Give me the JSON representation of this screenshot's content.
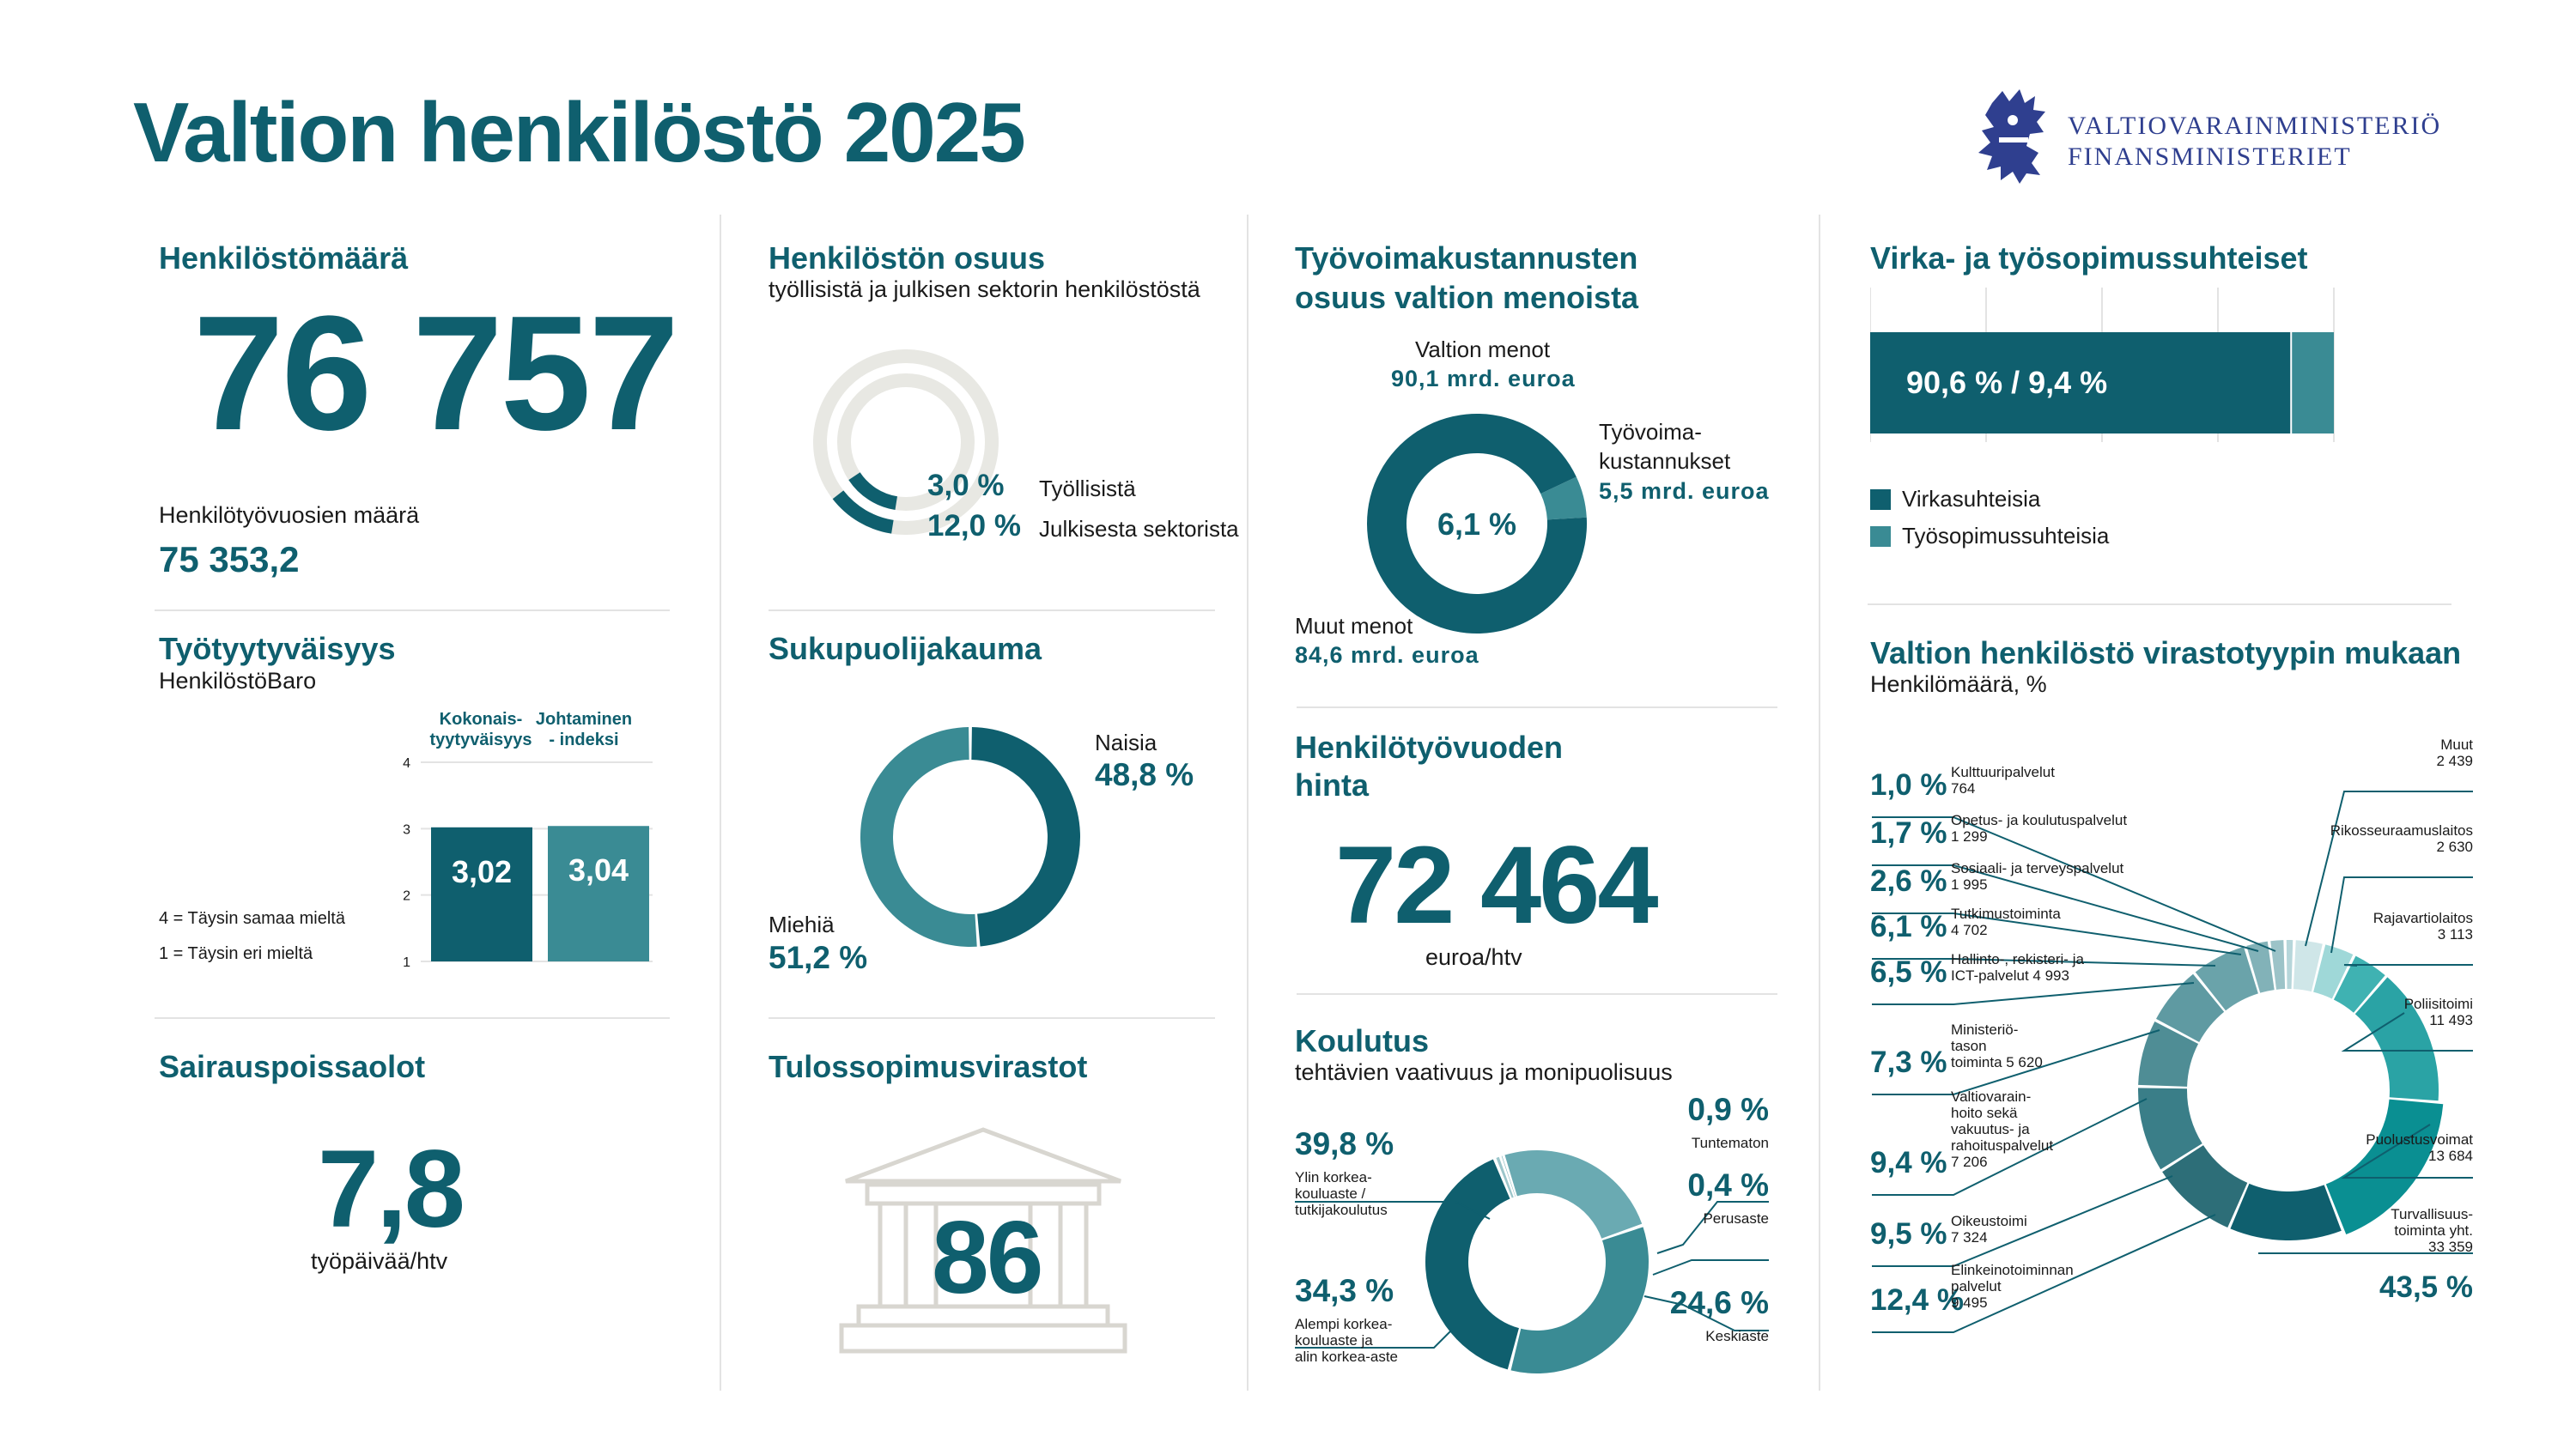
{
  "page_title": "Valtion henkilöstö 2025",
  "logo": {
    "line1": "VALTIOVARAINMINISTERIÖ",
    "line2": "FINANSMINISTERIET",
    "icon": "lion-crest-icon"
  },
  "colors": {
    "primary": "#0f5f6e",
    "mid": "#3a8b94",
    "light": "#6aaab2",
    "grey": "#e8e8e3",
    "grey_bar": "#b0b3b4"
  },
  "headcount": {
    "title": "Henkilöstömäärä",
    "value": "76 757",
    "htv_label": "Henkilötyövuosien määrä",
    "htv_value": "75 353,2"
  },
  "share": {
    "title": "Henkilöstön osuus",
    "subtitle": "työllisistä ja julkisen sektorin henkilöstöstä",
    "items": [
      {
        "value": "3,0 %",
        "label": "Työllisistä"
      },
      {
        "value": "12,0 %",
        "label": "Julkisesta sektorista"
      }
    ]
  },
  "costs": {
    "title_line1": "Työvoimakustannusten",
    "title_line2": "osuus valtion menoista",
    "center": "6,1 %",
    "total_label": "Valtion menot",
    "total_value": "90,1 mrd. euroa",
    "labor_label1": "Työvoima-",
    "labor_label2": "kustannukset",
    "labor_value": "5,5 mrd. euroa",
    "other_label": "Muut menot",
    "other_value": "84,6 mrd. euroa"
  },
  "contracts": {
    "title": "Virka- ja työsopimussuhteiset",
    "bar_label": "90,6 % / 9,4 %",
    "legend": [
      "Virkasuhteisia",
      "Työsopimussuhteisia"
    ]
  },
  "satisfaction": {
    "title": "Työtyytyväisyys",
    "subtitle": "HenkilöstöBaro",
    "col1_line1": "Kokonais-",
    "col1_line2": "tyytyväisyys",
    "col2_line1": "Johtaminen",
    "col2_line2": "- indeksi",
    "scale_top": "4 = Täysin samaa mieltä",
    "scale_bottom": "1 = Täysin eri mieltä"
  },
  "gender": {
    "title": "Sukupuolijakauma",
    "women_label": "Naisia",
    "women_value": "48,8 %",
    "men_label": "Miehiä",
    "men_value": "51,2 %"
  },
  "htv_price": {
    "title_line1": "Henkilötyövuoden",
    "title_line2": "hinta",
    "value": "72 464",
    "unit": "euroa/htv"
  },
  "sick": {
    "title": "Sairauspoissaolot",
    "value": "7,8",
    "unit": "työpäivää/htv"
  },
  "results": {
    "title": "Tulossopimusvirastot",
    "value": "86",
    "icon": "government-building-icon"
  },
  "education": {
    "title": "Koulutus",
    "subtitle": "tehtävien vaativuus ja monipuolisuus",
    "items": [
      {
        "value": "39,8 %",
        "l1": "Ylin korkea-",
        "l2": "kouluaste /",
        "l3": "tutkijakoulutus"
      },
      {
        "value": "34,3 %",
        "l1": "Alempi korkea-",
        "l2": "kouluaste ja",
        "l3": "alin korkea-aste"
      },
      {
        "value": "0,9 %",
        "l1": "Tuntematon"
      },
      {
        "value": "0,4 %",
        "l1": "Perusaste"
      },
      {
        "value": "24,6 %",
        "l1": "Keskiaste"
      }
    ]
  },
  "agency": {
    "title": "Valtion henkilöstö virastotyypin mukaan",
    "subtitle": "Henkilömäärä, %",
    "left": [
      {
        "pct": "1,0 %",
        "l1": "Kulttuuripalvelut",
        "num": "764"
      },
      {
        "pct": "1,7 %",
        "l1": "Opetus- ja koulutuspalvelut",
        "num": "1 299"
      },
      {
        "pct": "2,6 %",
        "l1": "Sosiaali- ja terveyspalvelut",
        "num": "1 995"
      },
      {
        "pct": "6,1 %",
        "l1": "Tutkimustoiminta",
        "num": "4 702"
      },
      {
        "pct": "6,5 %",
        "l1": "Hallinto-, rekisteri- ja",
        "l2": "ICT-palvelut 4 993"
      },
      {
        "pct": "7,3 %",
        "l1": "Ministeriö-",
        "l2": "tason",
        "l3": "toiminta 5 620"
      },
      {
        "pct": "9,4 %",
        "l1": "Valtiovarain-",
        "l2": "hoito sekä",
        "l3": "vakuutus- ja",
        "l4": "rahoituspalvelut",
        "num": "7 206"
      },
      {
        "pct": "9,5 %",
        "l1": "Oikeustoimi",
        "num": "7 324"
      },
      {
        "pct": "12,4 %",
        "l1": "Elinkeinotoiminnan",
        "l2": "palvelut",
        "num": "9 495"
      }
    ],
    "right": [
      {
        "l1": "Muut",
        "num": "2 439"
      },
      {
        "l1": "Rikosseuraamuslaitos",
        "num": "2 630"
      },
      {
        "l1": "Rajavartiolaitos",
        "num": "3 113"
      },
      {
        "l1": "Poliisitoimi",
        "num": "11 493"
      },
      {
        "l1": "Puolustusvoimat",
        "num": "13 684"
      },
      {
        "l1": "Turvallisuus-",
        "l2": "toiminta yht.",
        "num": "33 359",
        "pct": "43,5 %"
      }
    ]
  },
  "chart_data": [
    {
      "type": "pie",
      "title": "Henkilöstön osuus",
      "series": [
        {
          "name": "Työllisistä",
          "values": [
            3.0
          ]
        },
        {
          "name": "Julkisesta sektorista",
          "values": [
            12.0
          ]
        }
      ]
    },
    {
      "type": "pie",
      "title": "Työvoimakustannusten osuus valtion menoista",
      "categories": [
        "Työvoimakustannukset",
        "Muut menot"
      ],
      "values": [
        5.5,
        84.6
      ]
    },
    {
      "type": "bar",
      "title": "Virka- ja työsopimussuhteiset",
      "categories": [
        "Virkasuhteisia",
        "Työsopimussuhteisia"
      ],
      "values": [
        90.6,
        9.4
      ]
    },
    {
      "type": "bar",
      "title": "Työtyytyväisyys",
      "categories": [
        "Kokonais-tyytyväisyys",
        "Johtaminen - indeksi"
      ],
      "values": [
        3.02,
        3.04
      ],
      "ylim": [
        1,
        4
      ],
      "yticks": [
        "1",
        "2",
        "3",
        "4"
      ],
      "value_labels": [
        "3,02",
        "3,04"
      ]
    },
    {
      "type": "pie",
      "title": "Sukupuolijakauma",
      "categories": [
        "Naisia",
        "Miehiä"
      ],
      "values": [
        48.8,
        51.2
      ]
    },
    {
      "type": "pie",
      "title": "Koulutus",
      "categories": [
        "Ylin korkeakouluaste / tutkijakoulutus",
        "Tuntematon",
        "Perusaste",
        "Keskiaste",
        "Alempi korkeakouluaste ja alin korkea-aste"
      ],
      "values": [
        39.8,
        0.9,
        0.4,
        24.6,
        34.3
      ]
    },
    {
      "type": "pie",
      "title": "Valtion henkilöstö virastotyypin mukaan",
      "categories": [
        "Muut",
        "Rikosseuraamuslaitos",
        "Rajavartiolaitos",
        "Poliisitoimi",
        "Puolustusvoimat",
        "Elinkeinotoiminnan palvelut",
        "Oikeustoimi",
        "Valtiovarainhoito sekä vakuutus- ja rahoituspalvelut",
        "Ministeriötason toiminta",
        "Hallinto-, rekisteri- ja ICT-palvelut",
        "Tutkimustoiminta",
        "Sosiaali- ja terveyspalvelut",
        "Opetus- ja koulutuspalvelut",
        "Kulttuuripalvelut"
      ],
      "values": [
        2439,
        2630,
        3113,
        11493,
        13684,
        9495,
        7324,
        7206,
        5620,
        4993,
        4702,
        1995,
        1299,
        764
      ]
    }
  ]
}
